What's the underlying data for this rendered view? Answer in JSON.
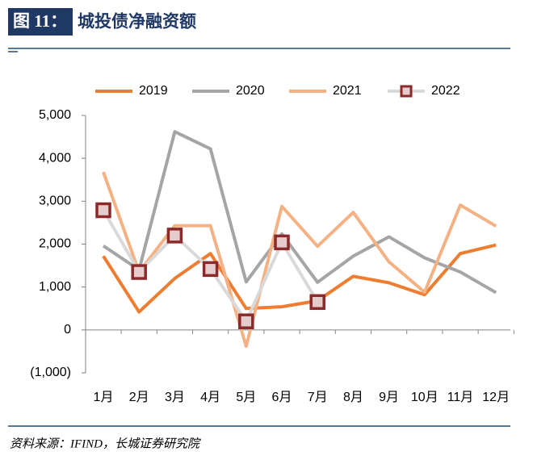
{
  "chart_data": {
    "type": "line",
    "figure_label": "图 11：",
    "title": "城投债净融资额",
    "source": "资料来源：IFIND，长城证券研究院",
    "categories": [
      "1月",
      "2月",
      "3月",
      "4月",
      "5月",
      "6月",
      "7月",
      "8月",
      "9月",
      "10月",
      "11月",
      "12月"
    ],
    "series": [
      {
        "name": "2019",
        "color": "#ed7d31",
        "values": [
          1720,
          420,
          1200,
          1780,
          500,
          540,
          680,
          1250,
          1100,
          820,
          1780,
          1980
        ]
      },
      {
        "name": "2020",
        "color": "#a5a5a5",
        "values": [
          1960,
          1400,
          4620,
          4220,
          1120,
          2240,
          1110,
          1720,
          2170,
          1680,
          1350,
          870
        ]
      },
      {
        "name": "2021",
        "color": "#f4b183",
        "values": [
          3680,
          1350,
          2430,
          2430,
          -380,
          2880,
          1950,
          2740,
          1590,
          880,
          2910,
          2420
        ]
      },
      {
        "name": "2022",
        "color": "#d9d9d9",
        "marker": "square",
        "marker_color": "#8b2a2a",
        "values": [
          2790,
          1350,
          2200,
          1420,
          200,
          2040,
          650,
          null,
          null,
          null,
          null,
          null
        ]
      }
    ],
    "ylim": [
      -1000,
      5000
    ],
    "yticks": [
      {
        "value": -1000,
        "label": "(1,000)"
      },
      0,
      {
        "value": 1000,
        "label": "1,000"
      },
      {
        "value": 2000,
        "label": "2,000"
      },
      {
        "value": 3000,
        "label": "3,000"
      },
      {
        "value": 4000,
        "label": "4,000"
      },
      {
        "value": 5000,
        "label": "5,000"
      }
    ],
    "negative_tick_color": "#c00000",
    "legend": "top",
    "grid": false
  }
}
